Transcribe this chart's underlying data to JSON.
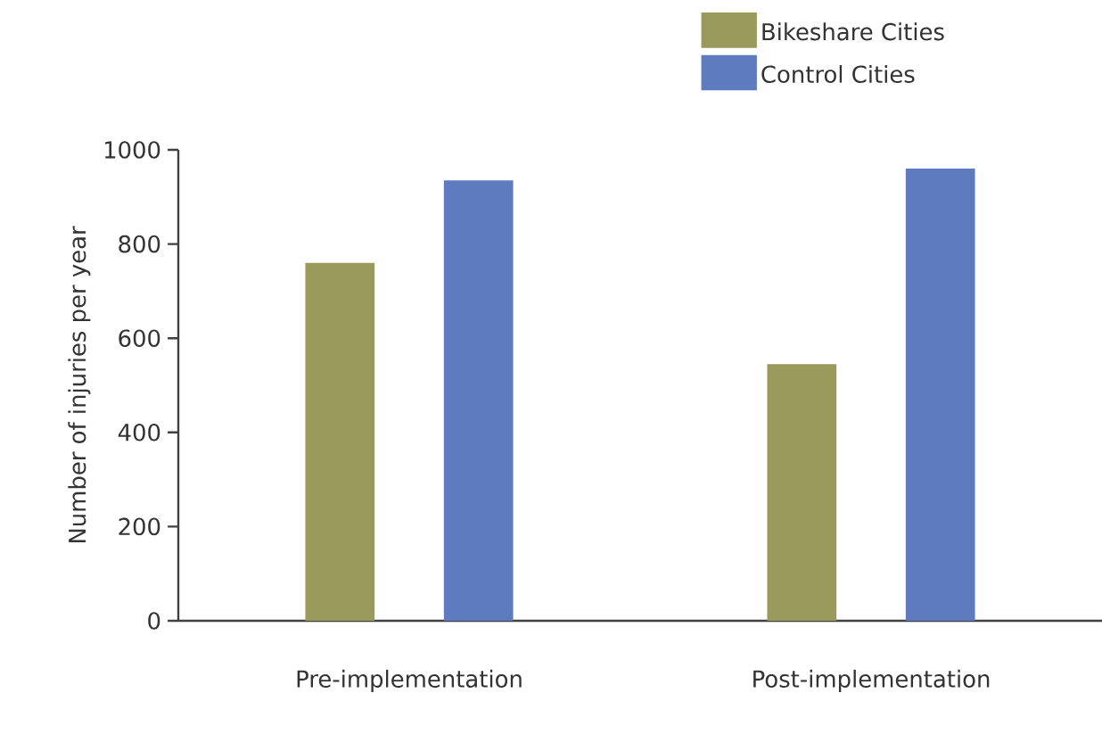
{
  "chart_data": {
    "type": "bar",
    "ylabel": "Number of injuries per year",
    "categories": [
      "Pre-implementation",
      "Post-implementation"
    ],
    "series": [
      {
        "name": "Bikeshare Cities",
        "color": "#9a9a5c",
        "values": [
          760,
          545
        ]
      },
      {
        "name": "Control Cities",
        "color": "#5f7bbf",
        "values": [
          935,
          960
        ]
      }
    ],
    "ylim": [
      0,
      1000
    ],
    "yticks": [
      0,
      200,
      400,
      600,
      800,
      1000
    ],
    "grid": false,
    "legend": "top right"
  }
}
